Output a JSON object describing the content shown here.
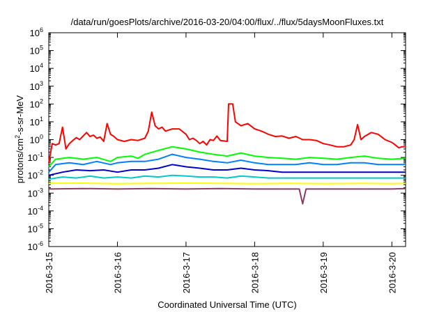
{
  "chart_data": {
    "type": "line",
    "title": "/data/run/goesPlots/archive/2016-03-20/04:00/flux/../flux/5daysMoonFluxes.txt",
    "xlabel": "Coordinated Universal Time (UTC)",
    "ylabel_main": "protons/cm",
    "ylabel_sup": "2",
    "ylabel_tail": "-s-sr-MeV",
    "x_ticks": [
      "2016-3-15",
      "2016-3-16",
      "2016-3-17",
      "2016-3-18",
      "2016-3-19",
      "2016-3-20"
    ],
    "x_range_days": [
      0,
      5.2
    ],
    "y_scale": "log",
    "y_range": [
      1e-06,
      1000000.0
    ],
    "y_ticks": [
      {
        "base": "10",
        "exp": "-6"
      },
      {
        "base": "10",
        "exp": "-5"
      },
      {
        "base": "10",
        "exp": "-4"
      },
      {
        "base": "10",
        "exp": "-3"
      },
      {
        "base": "10",
        "exp": "-2"
      },
      {
        "base": "10",
        "exp": "-1"
      },
      {
        "base": "10",
        "exp": "0"
      },
      {
        "base": "10",
        "exp": "1"
      },
      {
        "base": "10",
        "exp": "2"
      },
      {
        "base": "10",
        "exp": "3"
      },
      {
        "base": "10",
        "exp": "4"
      },
      {
        "base": "10",
        "exp": "5"
      },
      {
        "base": "10",
        "exp": "6"
      }
    ],
    "grid": false,
    "legend": "none",
    "series": [
      {
        "color": "#ff0000",
        "points": [
          [
            0,
            0.05
          ],
          [
            0.05,
            0.6
          ],
          [
            0.1,
            0.5
          ],
          [
            0.15,
            0.6
          ],
          [
            0.2,
            5
          ],
          [
            0.25,
            0.3
          ],
          [
            0.3,
            0.6
          ],
          [
            0.35,
            0.9
          ],
          [
            0.4,
            1.3
          ],
          [
            0.45,
            1.0
          ],
          [
            0.5,
            1.6
          ],
          [
            0.55,
            2.5
          ],
          [
            0.6,
            1.5
          ],
          [
            0.65,
            1.8
          ],
          [
            0.7,
            1.2
          ],
          [
            0.75,
            1.4
          ],
          [
            0.8,
            0.8
          ],
          [
            0.85,
            8
          ],
          [
            0.9,
            2.0
          ],
          [
            0.95,
            1.5
          ],
          [
            1.0,
            1.0
          ],
          [
            1.1,
            0.8
          ],
          [
            1.2,
            1.0
          ],
          [
            1.3,
            0.9
          ],
          [
            1.4,
            1.2
          ],
          [
            1.45,
            3
          ],
          [
            1.5,
            35
          ],
          [
            1.55,
            6
          ],
          [
            1.6,
            4
          ],
          [
            1.65,
            5
          ],
          [
            1.7,
            3
          ],
          [
            1.8,
            4
          ],
          [
            1.9,
            4
          ],
          [
            2.0,
            2
          ],
          [
            2.05,
            1.0
          ],
          [
            2.1,
            1.2
          ],
          [
            2.15,
            0.9
          ],
          [
            2.2,
            0.6
          ],
          [
            2.25,
            0.8
          ],
          [
            2.3,
            0.5
          ],
          [
            2.35,
            1.0
          ],
          [
            2.4,
            0.9
          ],
          [
            2.45,
            1.6
          ],
          [
            2.5,
            0.9
          ],
          [
            2.6,
            0.8
          ],
          [
            2.62,
            100
          ],
          [
            2.68,
            100
          ],
          [
            2.72,
            10
          ],
          [
            2.8,
            6
          ],
          [
            2.9,
            8
          ],
          [
            3.0,
            4
          ],
          [
            3.1,
            3
          ],
          [
            3.2,
            2
          ],
          [
            3.3,
            1.5
          ],
          [
            3.4,
            1.6
          ],
          [
            3.5,
            1.2
          ],
          [
            3.6,
            1.5
          ],
          [
            3.7,
            1.0
          ],
          [
            3.8,
            1.0
          ],
          [
            3.9,
            0.9
          ],
          [
            4.0,
            0.6
          ],
          [
            4.1,
            0.5
          ],
          [
            4.2,
            0.4
          ],
          [
            4.3,
            0.4
          ],
          [
            4.4,
            0.5
          ],
          [
            4.45,
            1.0
          ],
          [
            4.5,
            7
          ],
          [
            4.55,
            1.0
          ],
          [
            4.6,
            1.5
          ],
          [
            4.7,
            2.5
          ],
          [
            4.8,
            2.0
          ],
          [
            4.9,
            1.0
          ],
          [
            5.0,
            0.7
          ],
          [
            5.05,
            0.5
          ],
          [
            5.1,
            0.35
          ],
          [
            5.15,
            0.4
          ],
          [
            5.2,
            0.4
          ]
        ]
      },
      {
        "color": "#00ff00",
        "points": [
          [
            0,
            0.03
          ],
          [
            0.1,
            0.08
          ],
          [
            0.3,
            0.1
          ],
          [
            0.5,
            0.08
          ],
          [
            0.7,
            0.1
          ],
          [
            0.9,
            0.06
          ],
          [
            1.0,
            0.1
          ],
          [
            1.2,
            0.12
          ],
          [
            1.3,
            0.09
          ],
          [
            1.4,
            0.15
          ],
          [
            1.6,
            0.25
          ],
          [
            1.8,
            0.4
          ],
          [
            2.0,
            0.3
          ],
          [
            2.2,
            0.2
          ],
          [
            2.4,
            0.15
          ],
          [
            2.6,
            0.12
          ],
          [
            2.8,
            0.18
          ],
          [
            3.0,
            0.12
          ],
          [
            3.2,
            0.1
          ],
          [
            3.4,
            0.09
          ],
          [
            3.6,
            0.08
          ],
          [
            3.8,
            0.1
          ],
          [
            4.0,
            0.09
          ],
          [
            4.2,
            0.08
          ],
          [
            4.4,
            0.1
          ],
          [
            4.6,
            0.12
          ],
          [
            4.8,
            0.09
          ],
          [
            5.0,
            0.08
          ],
          [
            5.2,
            0.09
          ]
        ]
      },
      {
        "color": "#0080ff",
        "points": [
          [
            0,
            0.015
          ],
          [
            0.1,
            0.04
          ],
          [
            0.3,
            0.05
          ],
          [
            0.5,
            0.04
          ],
          [
            0.7,
            0.06
          ],
          [
            0.9,
            0.04
          ],
          [
            1.0,
            0.05
          ],
          [
            1.2,
            0.06
          ],
          [
            1.4,
            0.06
          ],
          [
            1.6,
            0.08
          ],
          [
            1.8,
            0.15
          ],
          [
            2.0,
            0.1
          ],
          [
            2.2,
            0.08
          ],
          [
            2.4,
            0.06
          ],
          [
            2.6,
            0.05
          ],
          [
            2.8,
            0.07
          ],
          [
            3.0,
            0.05
          ],
          [
            3.2,
            0.04
          ],
          [
            3.4,
            0.04
          ],
          [
            3.6,
            0.04
          ],
          [
            3.8,
            0.05
          ],
          [
            4.0,
            0.04
          ],
          [
            4.2,
            0.04
          ],
          [
            4.4,
            0.05
          ],
          [
            4.6,
            0.05
          ],
          [
            4.8,
            0.04
          ],
          [
            5.0,
            0.04
          ],
          [
            5.2,
            0.04
          ]
        ]
      },
      {
        "color": "#0000c8",
        "points": [
          [
            0,
            0.01
          ],
          [
            0.2,
            0.015
          ],
          [
            0.4,
            0.02
          ],
          [
            0.6,
            0.018
          ],
          [
            0.8,
            0.02
          ],
          [
            1.0,
            0.015
          ],
          [
            1.2,
            0.02
          ],
          [
            1.4,
            0.02
          ],
          [
            1.6,
            0.025
          ],
          [
            1.8,
            0.04
          ],
          [
            2.0,
            0.03
          ],
          [
            2.2,
            0.025
          ],
          [
            2.4,
            0.02
          ],
          [
            2.6,
            0.02
          ],
          [
            2.8,
            0.025
          ],
          [
            3.0,
            0.02
          ],
          [
            3.2,
            0.018
          ],
          [
            3.4,
            0.015
          ],
          [
            3.6,
            0.015
          ],
          [
            3.8,
            0.015
          ],
          [
            4.0,
            0.015
          ],
          [
            4.2,
            0.015
          ],
          [
            4.4,
            0.015
          ],
          [
            4.6,
            0.015
          ],
          [
            4.8,
            0.015
          ],
          [
            5.0,
            0.015
          ],
          [
            5.2,
            0.015
          ]
        ]
      },
      {
        "color": "#00c8c8",
        "points": [
          [
            0,
            0.006
          ],
          [
            0.2,
            0.008
          ],
          [
            0.4,
            0.007
          ],
          [
            0.6,
            0.009
          ],
          [
            0.8,
            0.007
          ],
          [
            1.0,
            0.008
          ],
          [
            1.2,
            0.007
          ],
          [
            1.4,
            0.009
          ],
          [
            1.6,
            0.008
          ],
          [
            1.8,
            0.01
          ],
          [
            2.0,
            0.009
          ],
          [
            2.2,
            0.008
          ],
          [
            2.4,
            0.008
          ],
          [
            2.6,
            0.007
          ],
          [
            2.8,
            0.009
          ],
          [
            3.0,
            0.008
          ],
          [
            3.2,
            0.007
          ],
          [
            3.4,
            0.007
          ],
          [
            3.6,
            0.007
          ],
          [
            3.8,
            0.007
          ],
          [
            4.0,
            0.007
          ],
          [
            4.2,
            0.007
          ],
          [
            4.4,
            0.007
          ],
          [
            4.6,
            0.007
          ],
          [
            4.8,
            0.007
          ],
          [
            5.0,
            0.007
          ],
          [
            5.2,
            0.007
          ]
        ]
      },
      {
        "color": "#ffff00",
        "points": [
          [
            0,
            0.0035
          ],
          [
            0.5,
            0.0036
          ],
          [
            1.0,
            0.0034
          ],
          [
            1.5,
            0.0035
          ],
          [
            2.0,
            0.0036
          ],
          [
            2.5,
            0.0035
          ],
          [
            3.0,
            0.0034
          ],
          [
            3.5,
            0.0035
          ],
          [
            4.0,
            0.0034
          ],
          [
            4.5,
            0.0035
          ],
          [
            5.0,
            0.0034
          ],
          [
            5.2,
            0.0035
          ]
        ]
      },
      {
        "color": "#8b3a62",
        "points": [
          [
            0,
            0.0017
          ],
          [
            0.5,
            0.0018
          ],
          [
            1.0,
            0.0017
          ],
          [
            1.5,
            0.0018
          ],
          [
            2.0,
            0.0017
          ],
          [
            2.5,
            0.0018
          ],
          [
            3.0,
            0.0017
          ],
          [
            3.5,
            0.0017
          ],
          [
            3.65,
            0.0017
          ],
          [
            3.7,
            0.00025
          ],
          [
            3.75,
            0.0017
          ],
          [
            4.0,
            0.0017
          ],
          [
            4.5,
            0.0017
          ],
          [
            5.0,
            0.0017
          ],
          [
            5.2,
            0.0018
          ]
        ]
      }
    ]
  }
}
